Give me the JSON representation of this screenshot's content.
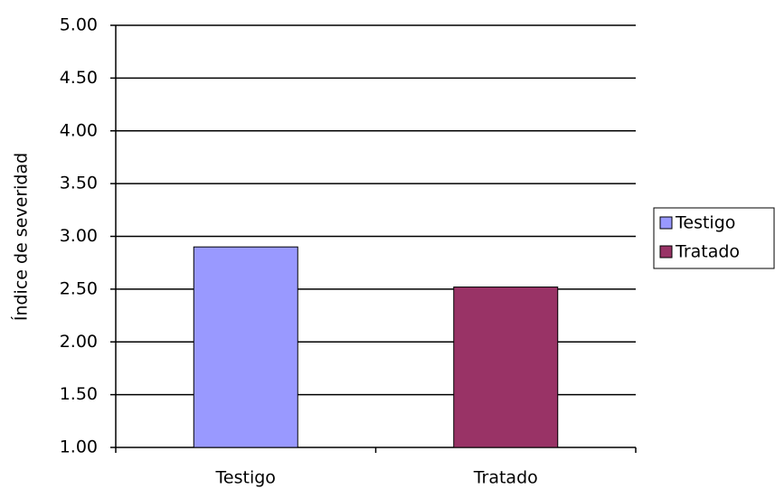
{
  "chart_data": {
    "type": "bar",
    "y_label": "Índice de severidad",
    "categories": [
      "Testigo",
      "Tratado"
    ],
    "values": [
      2.9,
      2.52
    ],
    "colors": [
      "#9999ff",
      "#993366"
    ],
    "ylim": [
      1,
      5
    ],
    "yticks": [
      {
        "value": 1,
        "label": "1.00"
      },
      {
        "value": 1.5,
        "label": "1.50"
      },
      {
        "value": 2,
        "label": "2.00"
      },
      {
        "value": 2.5,
        "label": "2.50"
      },
      {
        "value": 3,
        "label": "3.00"
      },
      {
        "value": 3.5,
        "label": "3.50"
      },
      {
        "value": 4,
        "label": "4.00"
      },
      {
        "value": 4.5,
        "label": "4.50"
      },
      {
        "value": 5,
        "label": "5.00"
      }
    ],
    "grid": true,
    "legend": "right"
  }
}
